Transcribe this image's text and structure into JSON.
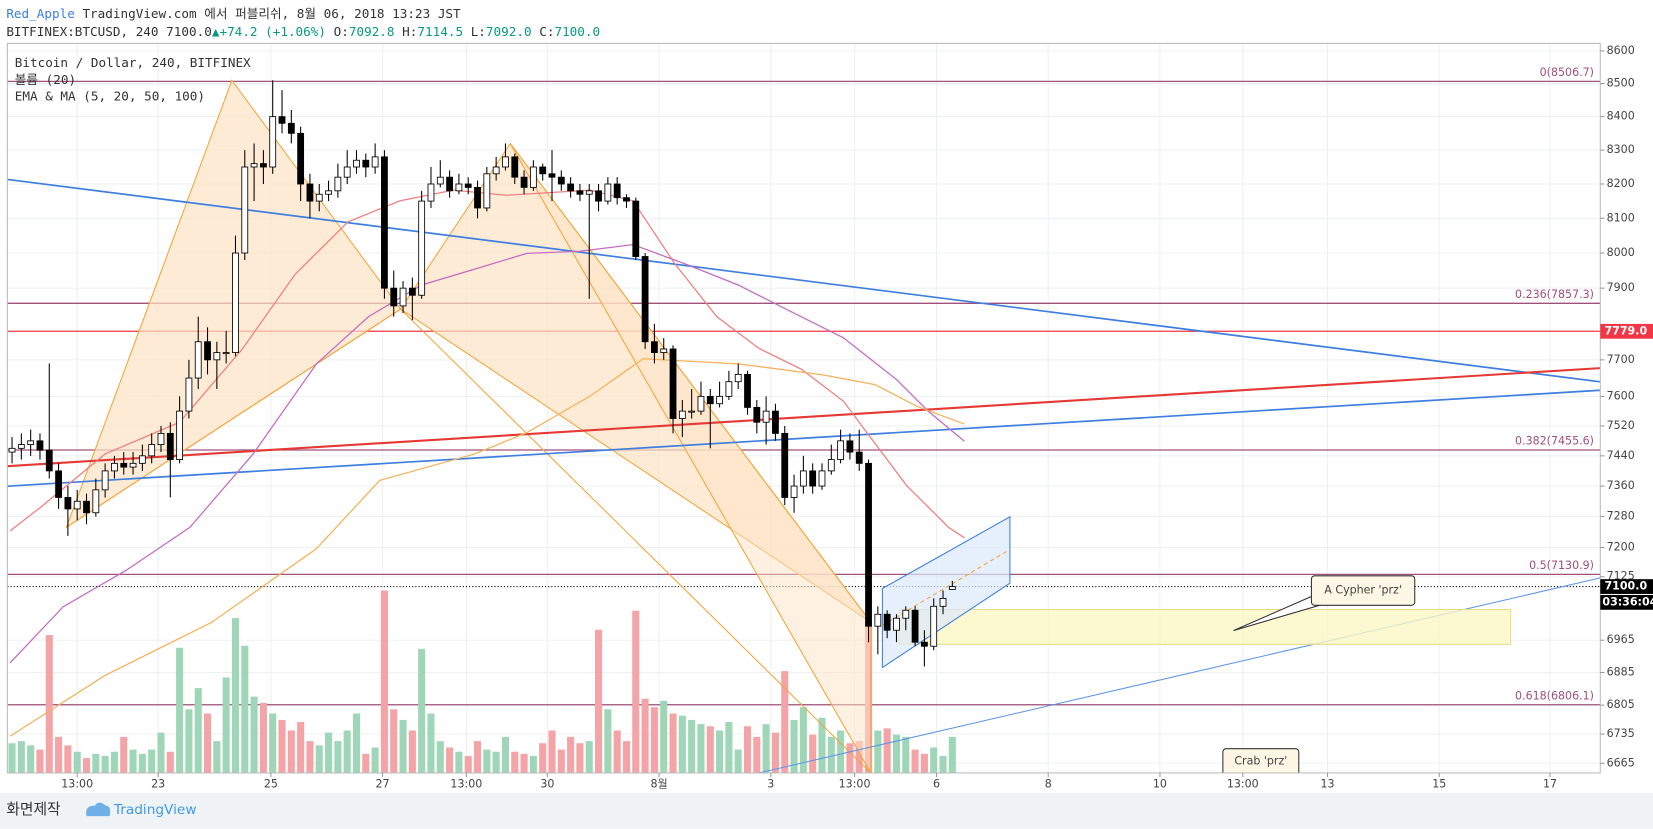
{
  "header": {
    "user": "Red_Apple",
    "published": "TradingView.com 에서 퍼블리쉬, 8월 06, 2018 13:23 JST",
    "symbol": "BITFINEX:BTCUSD, 240",
    "last": "7100.0",
    "arrow": "▲",
    "change": "+74.2 (+1.06%)",
    "o_label": "O:",
    "o": "7092.8",
    "h_label": "H:",
    "h": "7114.5",
    "l_label": "L:",
    "l": "7092.0",
    "c_label": "C:",
    "c": "7100.0"
  },
  "chart_data": {
    "type": "candlestick",
    "title": "Bitcoin / Dollar, 240, BITFINEX",
    "legend": [
      "볼륨 (20)",
      "EMA & MA (5, 20, 50, 100)"
    ],
    "log_scale": true,
    "grid": true,
    "ylim": [
      6642,
      8623
    ],
    "yticks": [
      8600,
      8500,
      8400,
      8300,
      8200,
      8100,
      8000,
      7900,
      7700,
      7600,
      7520,
      7440,
      7360,
      7280,
      7200,
      7125,
      6965,
      6885,
      6805,
      6735,
      6665
    ],
    "xlim": [
      0,
      171.1
    ],
    "xticks": [
      {
        "value": 7.5,
        "label": "13:00"
      },
      {
        "value": 16.2,
        "label": "23"
      },
      {
        "value": 28.3,
        "label": "25"
      },
      {
        "value": 40.3,
        "label": "27"
      },
      {
        "value": 49.3,
        "label": "13:00"
      },
      {
        "value": 58,
        "label": "30"
      },
      {
        "value": 70,
        "label": "8월"
      },
      {
        "value": 82,
        "label": "3"
      },
      {
        "value": 91,
        "label": "13:00"
      },
      {
        "value": 99.8,
        "label": "6"
      },
      {
        "value": 111.8,
        "label": "8"
      },
      {
        "value": 123.8,
        "label": "10"
      },
      {
        "value": 132.7,
        "label": "13:00"
      },
      {
        "value": 141.8,
        "label": "13"
      },
      {
        "value": 153.8,
        "label": "15"
      },
      {
        "value": 165.7,
        "label": "17"
      }
    ],
    "up_color": "#ffffff",
    "down_color": "#000000",
    "volume_up_color": "#9fd6b8",
    "volume_down_color": "#f4a3a6",
    "ohlc": [
      [
        7450,
        7490,
        7420,
        7460
      ],
      [
        7460,
        7500,
        7430,
        7470
      ],
      [
        7470,
        7510,
        7440,
        7480
      ],
      [
        7480,
        7500,
        7430,
        7455
      ],
      [
        7455,
        7690,
        7380,
        7400
      ],
      [
        7400,
        7420,
        7300,
        7330
      ],
      [
        7330,
        7360,
        7230,
        7300
      ],
      [
        7300,
        7350,
        7270,
        7320
      ],
      [
        7320,
        7340,
        7260,
        7290
      ],
      [
        7290,
        7380,
        7280,
        7350
      ],
      [
        7350,
        7420,
        7330,
        7400
      ],
      [
        7400,
        7440,
        7380,
        7420
      ],
      [
        7420,
        7450,
        7390,
        7410
      ],
      [
        7410,
        7450,
        7390,
        7420
      ],
      [
        7420,
        7470,
        7400,
        7440
      ],
      [
        7440,
        7500,
        7420,
        7470
      ],
      [
        7470,
        7520,
        7450,
        7500
      ],
      [
        7500,
        7530,
        7330,
        7430
      ],
      [
        7430,
        7600,
        7420,
        7560
      ],
      [
        7560,
        7700,
        7540,
        7650
      ],
      [
        7650,
        7820,
        7620,
        7750
      ],
      [
        7750,
        7790,
        7660,
        7700
      ],
      [
        7700,
        7750,
        7620,
        7720
      ],
      [
        7720,
        7780,
        7690,
        7720
      ],
      [
        7720,
        8050,
        7710,
        8000
      ],
      [
        8000,
        8300,
        7980,
        8250
      ],
      [
        8250,
        8320,
        8150,
        8260
      ],
      [
        8260,
        8300,
        8200,
        8250
      ],
      [
        8250,
        8510,
        8230,
        8400
      ],
      [
        8400,
        8480,
        8350,
        8380
      ],
      [
        8380,
        8420,
        8320,
        8350
      ],
      [
        8350,
        8370,
        8150,
        8200
      ],
      [
        8200,
        8230,
        8100,
        8150
      ],
      [
        8150,
        8200,
        8120,
        8170
      ],
      [
        8170,
        8210,
        8150,
        8180
      ],
      [
        8180,
        8260,
        8160,
        8220
      ],
      [
        8220,
        8300,
        8200,
        8250
      ],
      [
        8250,
        8300,
        8230,
        8270
      ],
      [
        8270,
        8290,
        8220,
        8250
      ],
      [
        8250,
        8320,
        8230,
        8280
      ],
      [
        8280,
        8300,
        7870,
        7900
      ],
      [
        7900,
        7950,
        7820,
        7850
      ],
      [
        7850,
        7920,
        7830,
        7900
      ],
      [
        7900,
        7930,
        7810,
        7880
      ],
      [
        7880,
        8180,
        7870,
        8150
      ],
      [
        8150,
        8250,
        8130,
        8200
      ],
      [
        8200,
        8270,
        8190,
        8220
      ],
      [
        8220,
        8240,
        8160,
        8180
      ],
      [
        8180,
        8230,
        8170,
        8200
      ],
      [
        8200,
        8220,
        8170,
        8190
      ],
      [
        8190,
        8210,
        8100,
        8130
      ],
      [
        8130,
        8250,
        8120,
        8230
      ],
      [
        8230,
        8280,
        8210,
        8250
      ],
      [
        8250,
        8320,
        8240,
        8280
      ],
      [
        8280,
        8290,
        8200,
        8220
      ],
      [
        8220,
        8240,
        8170,
        8190
      ],
      [
        8190,
        8270,
        8180,
        8250
      ],
      [
        8250,
        8260,
        8210,
        8230
      ],
      [
        8230,
        8300,
        8150,
        8220
      ],
      [
        8220,
        8240,
        8180,
        8200
      ],
      [
        8200,
        8220,
        8160,
        8180
      ],
      [
        8180,
        8200,
        8150,
        8170
      ],
      [
        8170,
        8200,
        7870,
        8180
      ],
      [
        8180,
        8200,
        8120,
        8150
      ],
      [
        8150,
        8220,
        8140,
        8200
      ],
      [
        8200,
        8220,
        8140,
        8160
      ],
      [
        8160,
        8170,
        8130,
        8150
      ],
      [
        8150,
        8160,
        7980,
        7990
      ],
      [
        7990,
        8000,
        7730,
        7750
      ],
      [
        7750,
        7800,
        7690,
        7720
      ],
      [
        7720,
        7760,
        7700,
        7730
      ],
      [
        7730,
        7740,
        7500,
        7540
      ],
      [
        7540,
        7590,
        7490,
        7560
      ],
      [
        7560,
        7620,
        7540,
        7560
      ],
      [
        7560,
        7640,
        7550,
        7600
      ],
      [
        7600,
        7620,
        7460,
        7580
      ],
      [
        7580,
        7640,
        7570,
        7600
      ],
      [
        7600,
        7670,
        7590,
        7640
      ],
      [
        7640,
        7690,
        7620,
        7660
      ],
      [
        7660,
        7670,
        7550,
        7570
      ],
      [
        7570,
        7590,
        7500,
        7530
      ],
      [
        7530,
        7600,
        7470,
        7560
      ],
      [
        7560,
        7580,
        7480,
        7500
      ],
      [
        7500,
        7520,
        7310,
        7330
      ],
      [
        7330,
        7390,
        7290,
        7360
      ],
      [
        7360,
        7440,
        7340,
        7400
      ],
      [
        7400,
        7420,
        7340,
        7360
      ],
      [
        7360,
        7420,
        7350,
        7400
      ],
      [
        7400,
        7470,
        7390,
        7430
      ],
      [
        7430,
        7510,
        7420,
        7480
      ],
      [
        7480,
        7500,
        7430,
        7450
      ],
      [
        7450,
        7510,
        7400,
        7420
      ],
      [
        7420,
        7430,
        6960,
        7000
      ],
      [
        7000,
        7050,
        6930,
        7030
      ],
      [
        7030,
        7040,
        6970,
        6990
      ],
      [
        6990,
        7030,
        6960,
        7020
      ],
      [
        7020,
        7050,
        6990,
        7040
      ],
      [
        7040,
        7050,
        6950,
        6960
      ],
      [
        6960,
        6990,
        6900,
        6950
      ],
      [
        6950,
        7070,
        6940,
        7050
      ],
      [
        7050,
        7090,
        7030,
        7070
      ],
      [
        7092.8,
        7114.5,
        7092.0,
        7100.0
      ]
    ],
    "volume": [
      28,
      30,
      26,
      22,
      130,
      34,
      26,
      20,
      14,
      18,
      16,
      20,
      34,
      22,
      18,
      22,
      38,
      20,
      118,
      60,
      80,
      56,
      30,
      90,
      146,
      120,
      72,
      66,
      56,
      50,
      40,
      48,
      30,
      26,
      38,
      30,
      40,
      56,
      18,
      24,
      172,
      60,
      50,
      40,
      117,
      56,
      30,
      24,
      20,
      16,
      30,
      22,
      20,
      34,
      20,
      18,
      16,
      28,
      40,
      22,
      34,
      28,
      30,
      135,
      60,
      40,
      30,
      153,
      70,
      62,
      68,
      56,
      54,
      50,
      46,
      44,
      40,
      48,
      22,
      44,
      34,
      46,
      38,
      96,
      50,
      62,
      36,
      52,
      34,
      40,
      28,
      30,
      143,
      40,
      42,
      36,
      34,
      22,
      18,
      24,
      16,
      34
    ],
    "moving_averages": [
      {
        "color": "#f07f7f",
        "x": [
          0.3,
          3.7,
          10.5,
          18.5,
          25.3,
          30.9,
          36.6,
          42.2,
          47.9,
          53.6,
          62.6,
          67.2,
          71.7,
          76.2,
          80.7,
          85.3,
          89.8,
          93.2,
          96.6,
          101.1,
          102.8
        ],
        "values": [
          7243,
          7307,
          7445,
          7530,
          7732,
          7939,
          8090,
          8151,
          8182,
          8167,
          8182,
          8151,
          7969,
          7820,
          7732,
          7674,
          7587,
          7473,
          7361,
          7252,
          7225
        ]
      },
      {
        "color": "#c46cc4",
        "x": [
          0.3,
          6,
          12.8,
          19.6,
          26.4,
          33.2,
          38.8,
          44.5,
          50.2,
          55.8,
          61.5,
          67.2,
          72.8,
          78.5,
          84.1,
          89.8,
          95.5,
          98.9,
          102.8
        ],
        "values": [
          6909,
          7049,
          7142,
          7252,
          7445,
          7689,
          7820,
          7909,
          7954,
          7999,
          8005,
          8024,
          7969,
          7909,
          7835,
          7761,
          7646,
          7560,
          7479
        ]
      },
      {
        "color": "#f5b25a",
        "x": [
          0.3,
          10.5,
          21.9,
          33.2,
          40,
          50.2,
          55.8,
          62.6,
          68.3,
          78.5,
          87.5,
          93.2,
          97.7,
          102.8
        ],
        "values": [
          6730,
          6878,
          7009,
          7197,
          7375,
          7445,
          7502,
          7601,
          7703,
          7689,
          7659,
          7632,
          7573,
          7525
        ]
      }
    ],
    "fib_color": "#a0507a",
    "fib_levels": [
      {
        "value": 8506.7,
        "label": "0(8506.7)"
      },
      {
        "value": 7857.3,
        "label": "0.236(7857.3)"
      },
      {
        "value": 7455.6,
        "label": "0.382(7455.6)"
      },
      {
        "value": 7130.9,
        "label": "0.5(7130.9)"
      },
      {
        "value": 6806.1,
        "label": "0.618(6806.1)"
      }
    ],
    "price_line": {
      "value": 7779,
      "label": "7779.0",
      "color": "#f23645"
    },
    "last_price": {
      "value": 7100,
      "label": "7100.0",
      "color": "#000000"
    },
    "countdown": "03:36:04",
    "annotations": [
      "A Cypher 'prz'",
      "Crab 'prz'"
    ]
  },
  "footer": {
    "left": "화면제작",
    "brand": "TradingView"
  }
}
